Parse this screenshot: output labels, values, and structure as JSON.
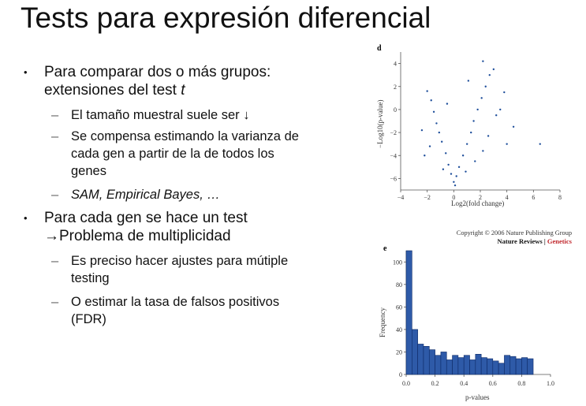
{
  "slide": {
    "title": "Tests para expresión diferencial",
    "bullets": [
      {
        "text_prefix": "Para comparar dos o más grupos: extensiones del test ",
        "text_italic": "t",
        "sub": [
          "El tamaño muestral suele ser ↓",
          "Se compensa estimando la varianza de cada gen a partir de la de todos los genes",
          "SAM, Empirical Bayes, …"
        ]
      },
      {
        "line1": "Para cada gen se hace un test",
        "line2": "→Problema de multiplicidad",
        "sub": [
          "Es preciso hacer ajustes para mútiple testing",
          "O estimar la tasa de falsos positivos (FDR)"
        ]
      }
    ]
  },
  "copyright": {
    "line1": "Copyright © 2006 Nature Publishing Group",
    "journal": "Nature Reviews",
    "separator": " | ",
    "section": "Genetics"
  },
  "chart_data": [
    {
      "type": "scatter",
      "panel_label": "d",
      "title": "",
      "xlabel": "Log2(fold change)",
      "ylabel": "−Log10(p-value)",
      "xlim": [
        -4,
        8
      ],
      "ylim": [
        -7,
        5
      ],
      "xticks": [
        "−4",
        "−2",
        "0",
        "2",
        "4",
        "6",
        "8"
      ],
      "yticks": [
        "4",
        "2",
        "0",
        "−2",
        "−4",
        "−6"
      ],
      "points": [
        [
          0,
          -6.3
        ],
        [
          0.2,
          -5.8
        ],
        [
          -0.2,
          -5.6
        ],
        [
          0.4,
          -5
        ],
        [
          -0.4,
          -4.8
        ],
        [
          0.7,
          -4
        ],
        [
          -0.6,
          -3.8
        ],
        [
          1,
          -3
        ],
        [
          -0.9,
          -2.8
        ],
        [
          1.3,
          -2
        ],
        [
          -1.1,
          -2
        ],
        [
          1.5,
          -1
        ],
        [
          -1.3,
          -1.2
        ],
        [
          1.8,
          0
        ],
        [
          -1.5,
          -0.2
        ],
        [
          2.1,
          1
        ],
        [
          -1.7,
          0.8
        ],
        [
          2.4,
          2
        ],
        [
          -2,
          1.6
        ],
        [
          2.7,
          3
        ],
        [
          3,
          3.5
        ],
        [
          3.5,
          0
        ],
        [
          4.5,
          -1.5
        ],
        [
          6.5,
          -3
        ],
        [
          3.2,
          -0.5
        ],
        [
          2.6,
          -2.3
        ],
        [
          -2.4,
          -1.8
        ],
        [
          0.1,
          -6.6
        ],
        [
          0.9,
          -5.4
        ],
        [
          -0.8,
          -5.2
        ],
        [
          1.6,
          -4.5
        ],
        [
          2.2,
          -3.6
        ],
        [
          -2.2,
          -4
        ],
        [
          -1.8,
          -3.2
        ],
        [
          3.8,
          1.5
        ],
        [
          4,
          -3
        ],
        [
          1.1,
          2.5
        ],
        [
          2.2,
          4.2
        ],
        [
          -0.5,
          0.5
        ]
      ]
    },
    {
      "type": "bar",
      "panel_label": "e",
      "title": "",
      "xlabel": "p-values",
      "ylabel": "Frequency",
      "xlim": [
        0,
        1
      ],
      "ylim": [
        0,
        110
      ],
      "xticks": [
        "0.0",
        "0.2",
        "0.4",
        "0.6",
        "0.8",
        "1.0"
      ],
      "yticks": [
        "0",
        "20",
        "40",
        "60",
        "80",
        "100"
      ],
      "bin_width": 0.04,
      "values": [
        110,
        40,
        27,
        25,
        22,
        17,
        20,
        13,
        17,
        15,
        17,
        13,
        18,
        15,
        14,
        12,
        10,
        17,
        16,
        14,
        15,
        14
      ]
    }
  ]
}
